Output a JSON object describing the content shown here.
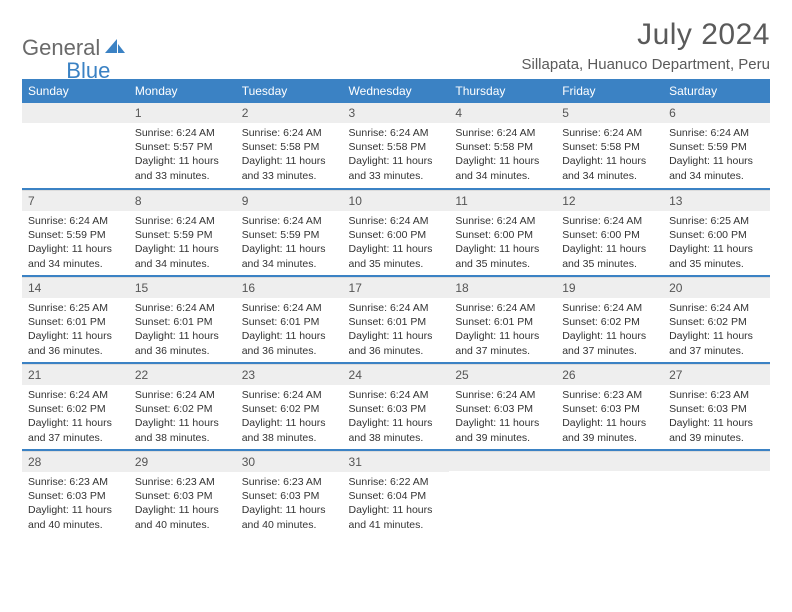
{
  "brand": {
    "part1": "General",
    "part2": "Blue"
  },
  "title": "July 2024",
  "location": "Sillapata, Huanuco Department, Peru",
  "colors": {
    "accent": "#3b82c4",
    "header_bg": "#3b82c4",
    "header_fg": "#ffffff",
    "daynum_bg": "#eeeeee",
    "text": "#333333"
  },
  "weekdays": [
    "Sunday",
    "Monday",
    "Tuesday",
    "Wednesday",
    "Thursday",
    "Friday",
    "Saturday"
  ],
  "first_weekday_index": 1,
  "days": [
    {
      "n": 1,
      "sunrise": "6:24 AM",
      "sunset": "5:57 PM",
      "daylight": "11 hours and 33 minutes."
    },
    {
      "n": 2,
      "sunrise": "6:24 AM",
      "sunset": "5:58 PM",
      "daylight": "11 hours and 33 minutes."
    },
    {
      "n": 3,
      "sunrise": "6:24 AM",
      "sunset": "5:58 PM",
      "daylight": "11 hours and 33 minutes."
    },
    {
      "n": 4,
      "sunrise": "6:24 AM",
      "sunset": "5:58 PM",
      "daylight": "11 hours and 34 minutes."
    },
    {
      "n": 5,
      "sunrise": "6:24 AM",
      "sunset": "5:58 PM",
      "daylight": "11 hours and 34 minutes."
    },
    {
      "n": 6,
      "sunrise": "6:24 AM",
      "sunset": "5:59 PM",
      "daylight": "11 hours and 34 minutes."
    },
    {
      "n": 7,
      "sunrise": "6:24 AM",
      "sunset": "5:59 PM",
      "daylight": "11 hours and 34 minutes."
    },
    {
      "n": 8,
      "sunrise": "6:24 AM",
      "sunset": "5:59 PM",
      "daylight": "11 hours and 34 minutes."
    },
    {
      "n": 9,
      "sunrise": "6:24 AM",
      "sunset": "5:59 PM",
      "daylight": "11 hours and 34 minutes."
    },
    {
      "n": 10,
      "sunrise": "6:24 AM",
      "sunset": "6:00 PM",
      "daylight": "11 hours and 35 minutes."
    },
    {
      "n": 11,
      "sunrise": "6:24 AM",
      "sunset": "6:00 PM",
      "daylight": "11 hours and 35 minutes."
    },
    {
      "n": 12,
      "sunrise": "6:24 AM",
      "sunset": "6:00 PM",
      "daylight": "11 hours and 35 minutes."
    },
    {
      "n": 13,
      "sunrise": "6:25 AM",
      "sunset": "6:00 PM",
      "daylight": "11 hours and 35 minutes."
    },
    {
      "n": 14,
      "sunrise": "6:25 AM",
      "sunset": "6:01 PM",
      "daylight": "11 hours and 36 minutes."
    },
    {
      "n": 15,
      "sunrise": "6:24 AM",
      "sunset": "6:01 PM",
      "daylight": "11 hours and 36 minutes."
    },
    {
      "n": 16,
      "sunrise": "6:24 AM",
      "sunset": "6:01 PM",
      "daylight": "11 hours and 36 minutes."
    },
    {
      "n": 17,
      "sunrise": "6:24 AM",
      "sunset": "6:01 PM",
      "daylight": "11 hours and 36 minutes."
    },
    {
      "n": 18,
      "sunrise": "6:24 AM",
      "sunset": "6:01 PM",
      "daylight": "11 hours and 37 minutes."
    },
    {
      "n": 19,
      "sunrise": "6:24 AM",
      "sunset": "6:02 PM",
      "daylight": "11 hours and 37 minutes."
    },
    {
      "n": 20,
      "sunrise": "6:24 AM",
      "sunset": "6:02 PM",
      "daylight": "11 hours and 37 minutes."
    },
    {
      "n": 21,
      "sunrise": "6:24 AM",
      "sunset": "6:02 PM",
      "daylight": "11 hours and 37 minutes."
    },
    {
      "n": 22,
      "sunrise": "6:24 AM",
      "sunset": "6:02 PM",
      "daylight": "11 hours and 38 minutes."
    },
    {
      "n": 23,
      "sunrise": "6:24 AM",
      "sunset": "6:02 PM",
      "daylight": "11 hours and 38 minutes."
    },
    {
      "n": 24,
      "sunrise": "6:24 AM",
      "sunset": "6:03 PM",
      "daylight": "11 hours and 38 minutes."
    },
    {
      "n": 25,
      "sunrise": "6:24 AM",
      "sunset": "6:03 PM",
      "daylight": "11 hours and 39 minutes."
    },
    {
      "n": 26,
      "sunrise": "6:23 AM",
      "sunset": "6:03 PM",
      "daylight": "11 hours and 39 minutes."
    },
    {
      "n": 27,
      "sunrise": "6:23 AM",
      "sunset": "6:03 PM",
      "daylight": "11 hours and 39 minutes."
    },
    {
      "n": 28,
      "sunrise": "6:23 AM",
      "sunset": "6:03 PM",
      "daylight": "11 hours and 40 minutes."
    },
    {
      "n": 29,
      "sunrise": "6:23 AM",
      "sunset": "6:03 PM",
      "daylight": "11 hours and 40 minutes."
    },
    {
      "n": 30,
      "sunrise": "6:23 AM",
      "sunset": "6:03 PM",
      "daylight": "11 hours and 40 minutes."
    },
    {
      "n": 31,
      "sunrise": "6:22 AM",
      "sunset": "6:04 PM",
      "daylight": "11 hours and 41 minutes."
    }
  ],
  "labels": {
    "sunrise": "Sunrise:",
    "sunset": "Sunset:",
    "daylight": "Daylight:"
  }
}
